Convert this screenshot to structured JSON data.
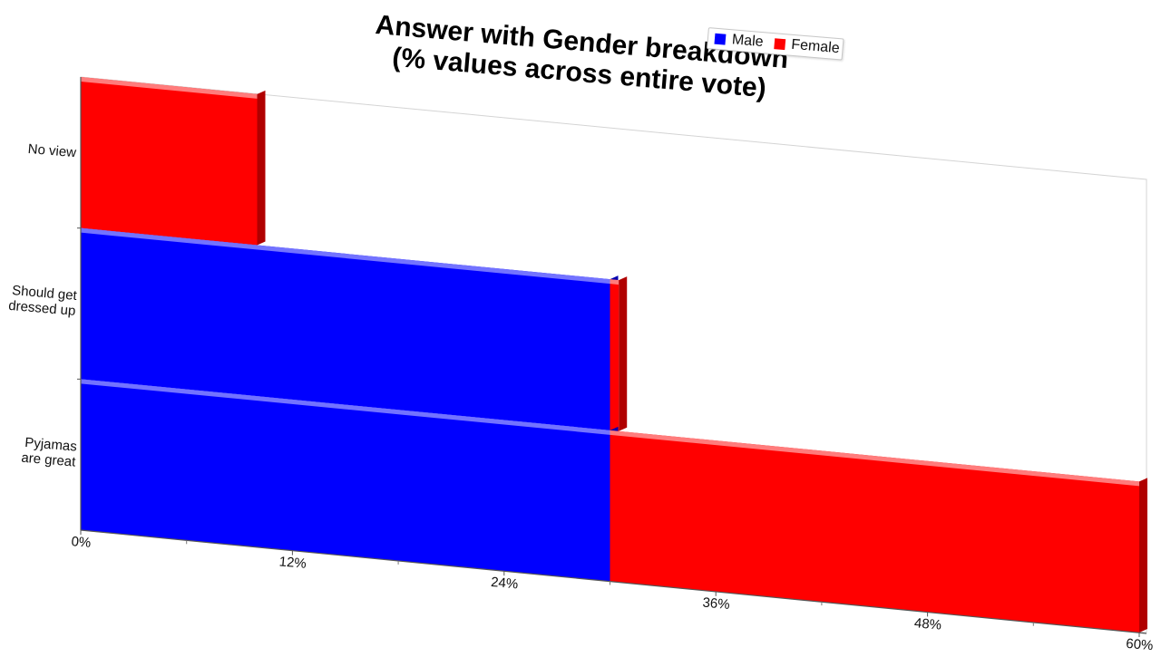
{
  "chart_data": {
    "type": "bar",
    "orientation": "horizontal",
    "stacked": true,
    "title_lines": [
      "Answer with Gender breakdown",
      "(% values across entire vote)"
    ],
    "categories": [
      "No view",
      "Should get dressed up",
      "Pyjamas are great"
    ],
    "category_label_lines": [
      [
        "No view"
      ],
      [
        "Should get",
        "dressed up"
      ],
      [
        "Pyjamas",
        "are great"
      ]
    ],
    "series": [
      {
        "name": "Male",
        "color": "#0000ff",
        "values": [
          0,
          30,
          30
        ]
      },
      {
        "name": "Female",
        "color": "#ff0000",
        "values": [
          10,
          0.5,
          30
        ]
      }
    ],
    "xlim": [
      0,
      60
    ],
    "xticks": [
      "0%",
      "12%",
      "24%",
      "36%",
      "48%",
      "60%"
    ],
    "grid": false,
    "legend_position": "top-right"
  }
}
